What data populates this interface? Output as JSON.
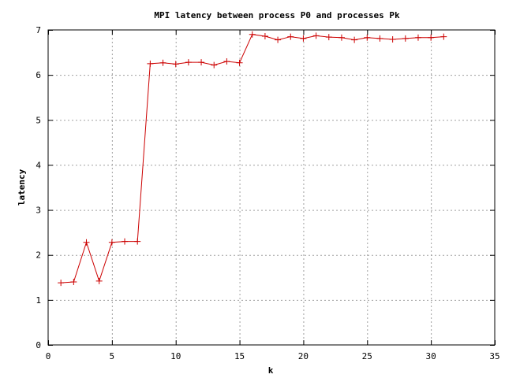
{
  "chart_data": {
    "type": "line",
    "title": "MPI latency between process P0 and processes Pk",
    "xlabel": "k",
    "ylabel": "latency",
    "xlim": [
      0,
      35
    ],
    "ylim": [
      0,
      7
    ],
    "xticks": [
      0,
      5,
      10,
      15,
      20,
      25,
      30,
      35
    ],
    "yticks": [
      0,
      1,
      2,
      3,
      4,
      5,
      6,
      7
    ],
    "grid": true,
    "legend": "none",
    "marker": "plus",
    "series": [
      {
        "color": "#cc0000",
        "x": [
          1,
          2,
          3,
          4,
          5,
          6,
          7,
          8,
          9,
          10,
          11,
          12,
          13,
          14,
          15,
          16,
          17,
          18,
          19,
          20,
          21,
          22,
          23,
          24,
          25,
          26,
          27,
          28,
          29,
          30,
          31
        ],
        "y": [
          1.38,
          1.4,
          2.28,
          1.42,
          2.28,
          2.3,
          2.3,
          6.25,
          6.27,
          6.24,
          6.28,
          6.28,
          6.22,
          6.3,
          6.27,
          6.9,
          6.86,
          6.78,
          6.85,
          6.81,
          6.87,
          6.84,
          6.83,
          6.78,
          6.83,
          6.81,
          6.79,
          6.81,
          6.83,
          6.83,
          6.85
        ]
      }
    ]
  }
}
